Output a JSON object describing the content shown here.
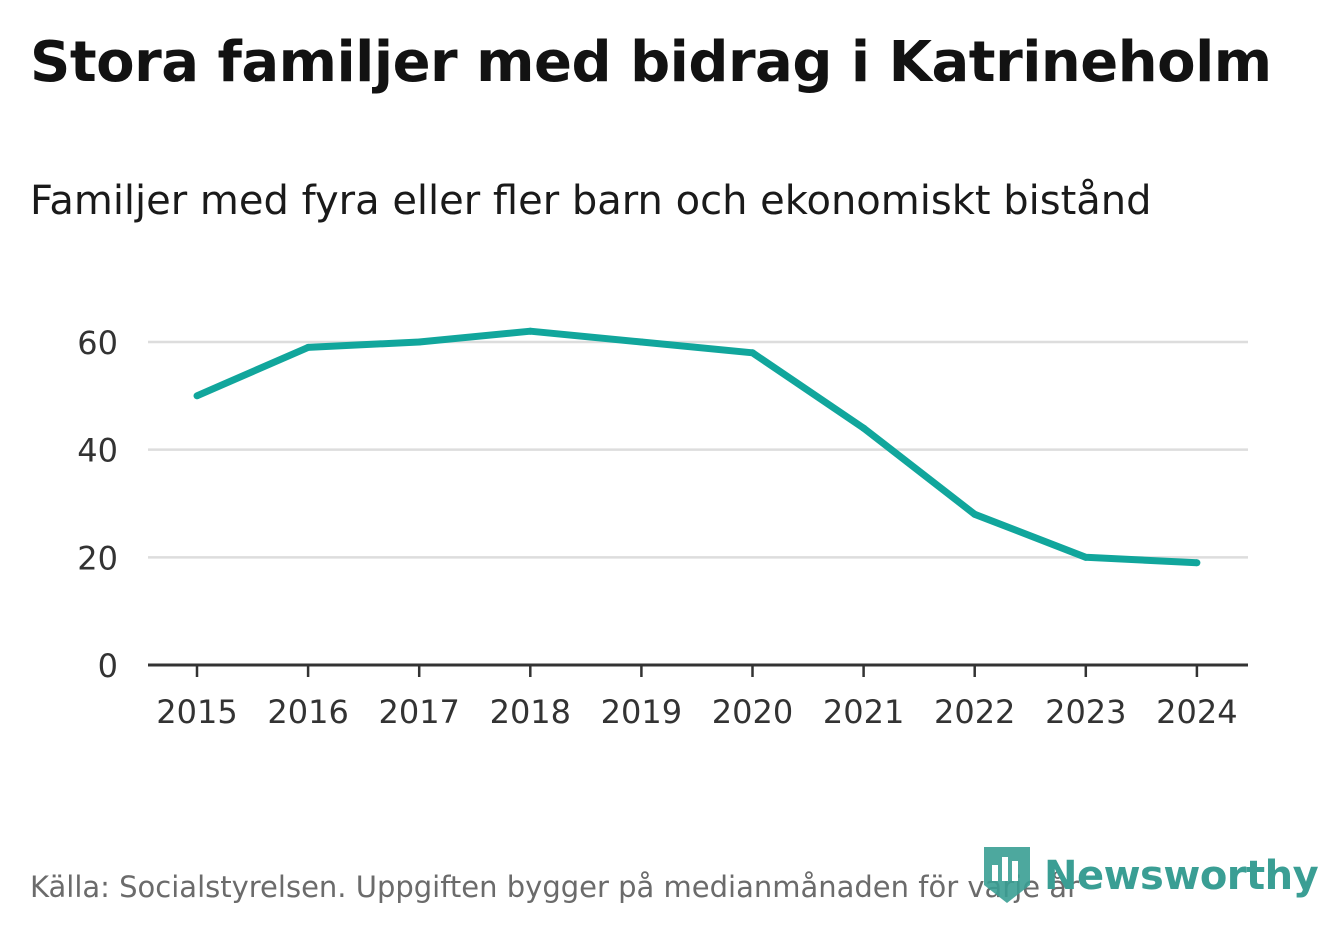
{
  "title": "Stora familjer med bidrag i Katrineholm",
  "subtitle": "Familjer med fyra eller fler barn och ekonomiskt bistånd",
  "source": "Källa: Socialstyrelsen. Uppgiften bygger på medianmånaden för varje år",
  "brand": {
    "name": "Newsworthy",
    "icon": "newsworthy-logo-icon"
  },
  "colors": {
    "line": "#11a69c",
    "grid": "#dddddd",
    "axis": "#333333",
    "brand": "#3a9e94"
  },
  "chart_data": {
    "type": "line",
    "title": "Stora familjer med bidrag i Katrineholm",
    "subtitle": "Familjer med fyra eller fler barn och ekonomiskt bistånd",
    "xlabel": "",
    "ylabel": "",
    "x": [
      "2015",
      "2016",
      "2017",
      "2018",
      "2019",
      "2020",
      "2021",
      "2022",
      "2023",
      "2024"
    ],
    "series": [
      {
        "name": "Familjer med fyra eller fler barn och ekonomiskt bistånd",
        "values": [
          50,
          59,
          60,
          62,
          60,
          58,
          44,
          28,
          20,
          19
        ]
      }
    ],
    "ylim": [
      0,
      60
    ],
    "yticks": [
      0,
      20,
      40,
      60
    ],
    "grid": true,
    "legend": "none"
  }
}
